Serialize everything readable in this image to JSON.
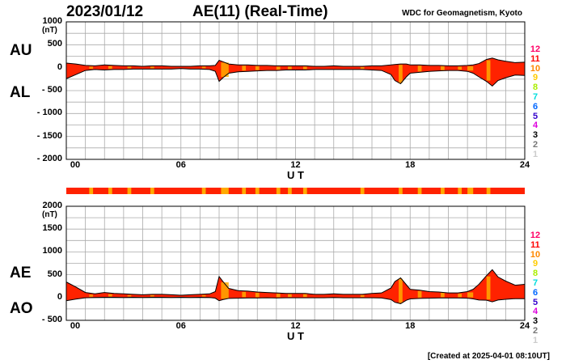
{
  "header": {
    "date": "2023/01/12",
    "title": "AE(11) (Real-Time)",
    "source": "WDC for Geomagnetism, Kyoto"
  },
  "footer": {
    "created": "[Created at 2025-04-01 08:10UT]"
  },
  "colors": {
    "fill": "#ff2200",
    "highlight": "#ffaa00",
    "grid": "#aaaaaa",
    "line": "#000000"
  },
  "legend": {
    "items": [
      {
        "label": "12",
        "color": "#ff0066"
      },
      {
        "label": "11",
        "color": "#ff0000"
      },
      {
        "label": "10",
        "color": "#ff8800"
      },
      {
        "label": "9",
        "color": "#ffcc00"
      },
      {
        "label": "8",
        "color": "#aaee00"
      },
      {
        "label": "7",
        "color": "#00dddd"
      },
      {
        "label": "6",
        "color": "#0066ff"
      },
      {
        "label": "5",
        "color": "#3300cc"
      },
      {
        "label": "4",
        "color": "#dd00dd"
      },
      {
        "label": "3",
        "color": "#000000"
      },
      {
        "label": "2",
        "color": "#777777"
      },
      {
        "label": "1",
        "color": "#cccccc"
      }
    ]
  },
  "chart_data": [
    {
      "type": "area",
      "xlabel": "U T",
      "yunit": "(nT)",
      "xticks": [
        "00",
        "06",
        "12",
        "18",
        "24"
      ],
      "xlim": [
        0,
        24
      ],
      "ylim": [
        -2000,
        1000
      ],
      "yticks": [
        "1000",
        "500",
        "0",
        "- 500",
        "- 1000",
        "- 1500",
        "- 2000"
      ],
      "series_labels": [
        "AU",
        "AL"
      ],
      "x": [
        0,
        0.5,
        1,
        1.5,
        2,
        2.5,
        3,
        3.5,
        4,
        4.5,
        5,
        5.5,
        6,
        6.5,
        7,
        7.5,
        7.8,
        8,
        8.2,
        8.5,
        9,
        9.5,
        10,
        10.5,
        11,
        11.5,
        12,
        12.5,
        13,
        13.5,
        14,
        14.5,
        15,
        15.5,
        16,
        16.5,
        17,
        17.2,
        17.5,
        17.8,
        18,
        18.5,
        19,
        19.5,
        20,
        20.5,
        21,
        21.3,
        21.6,
        22,
        22.3,
        22.6,
        23,
        23.5,
        24
      ],
      "au": [
        100,
        80,
        50,
        40,
        60,
        50,
        40,
        40,
        30,
        40,
        40,
        30,
        30,
        30,
        40,
        40,
        50,
        160,
        130,
        80,
        60,
        60,
        50,
        50,
        40,
        40,
        40,
        40,
        30,
        30,
        40,
        30,
        30,
        30,
        40,
        40,
        60,
        70,
        80,
        80,
        60,
        60,
        50,
        50,
        40,
        40,
        50,
        60,
        90,
        180,
        210,
        170,
        140,
        110,
        120
      ],
      "al": [
        -240,
        -150,
        -60,
        -40,
        -50,
        -40,
        -40,
        -30,
        -30,
        -30,
        -30,
        -30,
        -20,
        -30,
        -30,
        -40,
        -80,
        -300,
        -220,
        -120,
        -90,
        -80,
        -70,
        -60,
        -60,
        -50,
        -50,
        -50,
        -40,
        -40,
        -40,
        -40,
        -40,
        -40,
        -50,
        -60,
        -150,
        -280,
        -350,
        -200,
        -120,
        -100,
        -80,
        -70,
        -60,
        -60,
        -80,
        -120,
        -200,
        -300,
        -400,
        -280,
        -220,
        -160,
        -170
      ]
    },
    {
      "type": "area",
      "xlabel": "U T",
      "yunit": "(nT)",
      "xticks": [
        "00",
        "06",
        "12",
        "18",
        "24"
      ],
      "xlim": [
        0,
        24
      ],
      "ylim": [
        -500,
        2000
      ],
      "yticks": [
        "2000",
        "1500",
        "1000",
        "500",
        "0",
        "- 500"
      ],
      "series_labels": [
        "AE",
        "AO"
      ],
      "x": [
        0,
        0.5,
        1,
        1.5,
        2,
        2.5,
        3,
        3.5,
        4,
        4.5,
        5,
        5.5,
        6,
        6.5,
        7,
        7.5,
        7.8,
        8,
        8.2,
        8.5,
        9,
        9.5,
        10,
        10.5,
        11,
        11.5,
        12,
        12.5,
        13,
        13.5,
        14,
        14.5,
        15,
        15.5,
        16,
        16.5,
        17,
        17.2,
        17.5,
        17.8,
        18,
        18.5,
        19,
        19.5,
        20,
        20.5,
        21,
        21.3,
        21.6,
        22,
        22.3,
        22.6,
        23,
        23.5,
        24
      ],
      "ae": [
        340,
        230,
        110,
        80,
        110,
        90,
        80,
        70,
        60,
        70,
        70,
        60,
        50,
        60,
        70,
        80,
        130,
        460,
        350,
        200,
        150,
        140,
        120,
        110,
        100,
        90,
        90,
        90,
        70,
        70,
        80,
        70,
        70,
        70,
        90,
        100,
        210,
        350,
        430,
        280,
        180,
        160,
        130,
        120,
        100,
        100,
        130,
        180,
        290,
        480,
        610,
        450,
        360,
        270,
        290
      ],
      "ao": [
        -70,
        -35,
        -5,
        0,
        5,
        5,
        0,
        5,
        0,
        5,
        5,
        0,
        5,
        0,
        5,
        0,
        -15,
        -70,
        -45,
        -20,
        -15,
        -10,
        -10,
        -5,
        -10,
        -5,
        -5,
        -5,
        -5,
        -5,
        0,
        -5,
        -5,
        -5,
        -5,
        -10,
        -45,
        -105,
        -135,
        -60,
        -30,
        -20,
        -15,
        -10,
        -10,
        -10,
        -15,
        -30,
        -55,
        -60,
        -95,
        -55,
        -40,
        -25,
        -25
      ]
    }
  ],
  "activity_bar": {
    "highlights": [
      [
        1.2,
        1.4
      ],
      [
        2.2,
        2.4
      ],
      [
        3.2,
        3.4
      ],
      [
        4.4,
        4.6
      ],
      [
        7.1,
        7.3
      ],
      [
        8.1,
        8.5
      ],
      [
        9.2,
        9.4
      ],
      [
        9.9,
        10.1
      ],
      [
        11,
        11.2
      ],
      [
        11.6,
        11.8
      ],
      [
        12.4,
        12.6
      ],
      [
        15.4,
        15.6
      ],
      [
        17.4,
        17.6
      ],
      [
        18.4,
        18.6
      ],
      [
        19.6,
        19.8
      ],
      [
        20.5,
        20.7
      ],
      [
        21,
        21.3
      ],
      [
        22,
        22.2
      ]
    ]
  }
}
